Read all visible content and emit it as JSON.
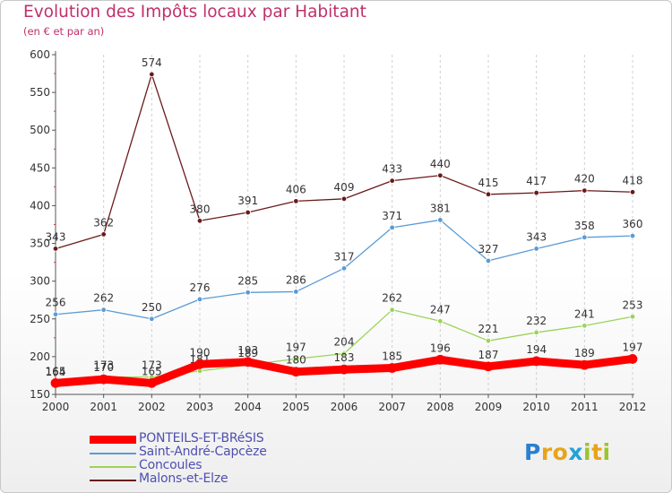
{
  "title": "Evolution des Impôts locaux par Habitant",
  "subtitle": "(en € et par an)",
  "brand": "Proxiti",
  "chart_data": {
    "type": "line",
    "title": "Evolution des Impôts locaux par Habitant",
    "subtitle": "(en € et par an)",
    "x": [
      2000,
      2001,
      2002,
      2003,
      2004,
      2005,
      2006,
      2007,
      2008,
      2009,
      2010,
      2011,
      2012
    ],
    "x_tick_labels": [
      "2000",
      "2001",
      "2002",
      "2003",
      "2004",
      "2005",
      "2006",
      "2007",
      "2008",
      "2009",
      "2010",
      "2011",
      "2012"
    ],
    "y_tick_labels": [
      "150",
      "200",
      "250",
      "300",
      "350",
      "400",
      "450",
      "500",
      "550",
      "600"
    ],
    "ylim": [
      150,
      600
    ],
    "grid": "vertical dashed",
    "legend_position": "bottom-left",
    "series": [
      {
        "name": "Malons-et-Elze",
        "color": "#6b1a1a",
        "width": 1.3,
        "marker": 2.8,
        "values": [
          343,
          362,
          574,
          380,
          391,
          406,
          409,
          433,
          440,
          415,
          417,
          420,
          418
        ]
      },
      {
        "name": "Saint-André-Capcèze",
        "color": "#5b9bd5",
        "width": 1.3,
        "marker": 2.8,
        "values": [
          256,
          262,
          250,
          276,
          285,
          286,
          317,
          371,
          381,
          327,
          343,
          358,
          360
        ]
      },
      {
        "name": "Concoules",
        "color": "#9bd35a",
        "width": 1.3,
        "marker": 2.8,
        "values": [
          164,
          173,
          173,
          181,
          189,
          197,
          204,
          262,
          247,
          221,
          232,
          241,
          253
        ]
      },
      {
        "name": "PONTEILS-ET-BRéSIS",
        "color": "#ff0000",
        "width": 9,
        "marker": 5,
        "values": [
          165,
          170,
          165,
          190,
          193,
          180,
          183,
          185,
          196,
          187,
          194,
          189,
          197
        ]
      }
    ]
  },
  "legend": [
    {
      "label": "PONTEILS-ET-BRéSIS",
      "color": "#ff0000",
      "thick": true
    },
    {
      "label": "Saint-André-Capcèze",
      "color": "#5b9bd5",
      "thick": false
    },
    {
      "label": "Concoules",
      "color": "#9bd35a",
      "thick": false
    },
    {
      "label": "Malons-et-Elze",
      "color": "#6b1a1a",
      "thick": false
    }
  ]
}
